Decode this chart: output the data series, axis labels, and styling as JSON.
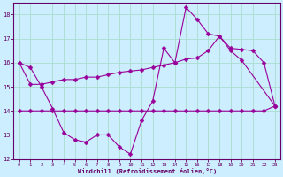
{
  "title": "",
  "xlabel": "Windchill (Refroidissement éolien,°C)",
  "ylabel": "",
  "background_color": "#cceeff",
  "grid_color": "#aaddcc",
  "line_color": "#990099",
  "x": [
    0,
    1,
    2,
    3,
    4,
    5,
    6,
    7,
    8,
    9,
    10,
    11,
    12,
    13,
    14,
    15,
    16,
    17,
    18,
    19,
    20,
    21,
    22,
    23
  ],
  "line1": [
    16.0,
    15.8,
    15.0,
    14.1,
    13.1,
    12.8,
    12.7,
    13.0,
    13.0,
    12.5,
    12.2,
    13.6,
    14.4,
    16.6,
    16.0,
    18.3,
    17.8,
    17.2,
    17.1,
    16.5,
    16.1,
    null,
    null,
    14.2
  ],
  "line2": [
    16.0,
    15.1,
    15.1,
    15.2,
    15.3,
    15.3,
    15.4,
    15.4,
    15.5,
    15.6,
    15.65,
    15.7,
    15.8,
    15.9,
    16.0,
    16.15,
    16.2,
    16.5,
    17.1,
    16.6,
    16.55,
    16.5,
    16.0,
    14.2
  ],
  "line3": [
    14.0,
    14.0,
    14.0,
    14.0,
    14.0,
    14.0,
    14.0,
    14.0,
    14.0,
    14.0,
    14.0,
    14.0,
    14.0,
    14.0,
    14.0,
    14.0,
    14.0,
    14.0,
    14.0,
    14.0,
    14.0,
    14.0,
    14.0,
    14.2
  ],
  "ylim": [
    12,
    18.5
  ],
  "xlim": [
    -0.5,
    23.5
  ],
  "yticks": [
    12,
    13,
    14,
    15,
    16,
    17,
    18
  ],
  "xticks": [
    0,
    1,
    2,
    3,
    4,
    5,
    6,
    7,
    8,
    9,
    10,
    11,
    12,
    13,
    14,
    15,
    16,
    17,
    18,
    19,
    20,
    21,
    22,
    23
  ]
}
